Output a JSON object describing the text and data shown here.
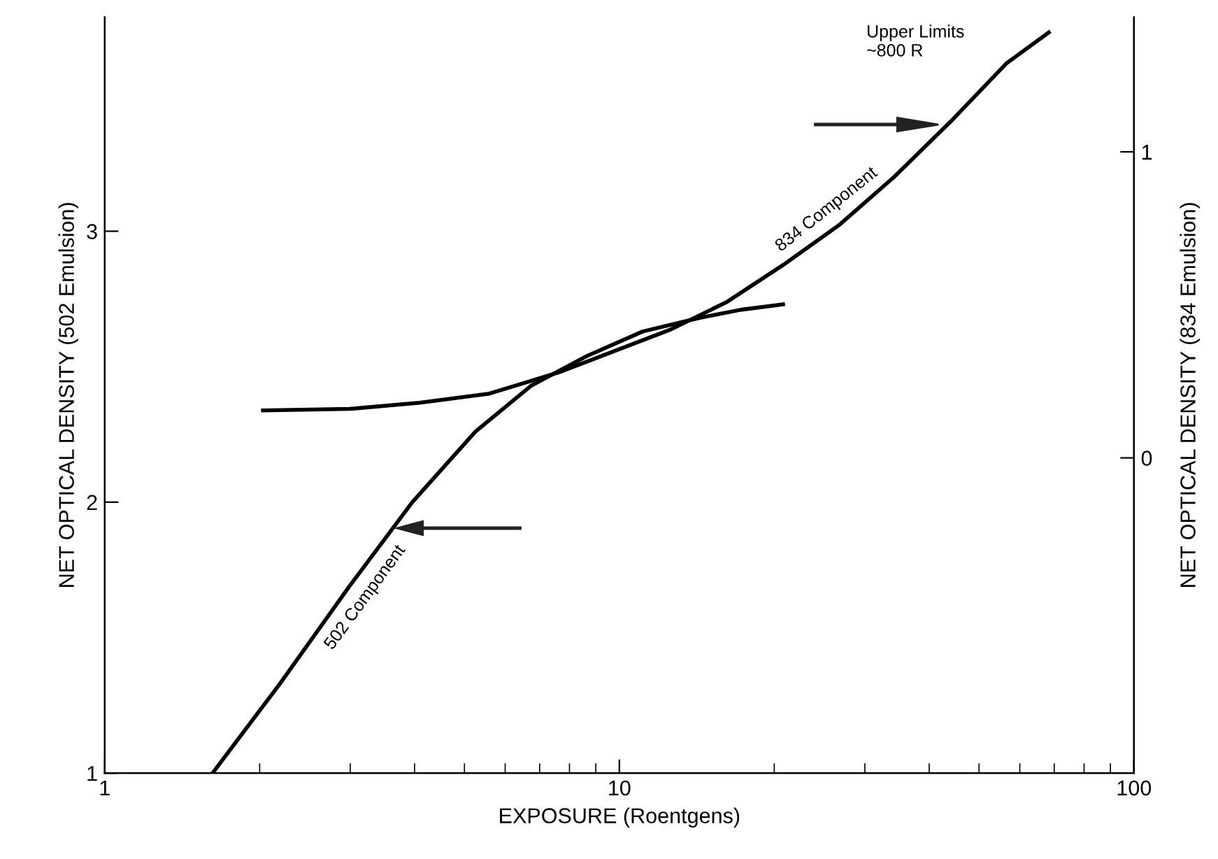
{
  "chart_data": {
    "type": "line",
    "xlabel": "EXPOSURE (Roentgens)",
    "ylabel": "NET OPTICAL DENSITY (502 Emulsion)",
    "y2label": "NET OPTICAL DENSITY (834 Emulsion)",
    "log": "x",
    "xlim": [
      1,
      100
    ],
    "xticks": [
      1,
      10,
      100
    ],
    "ylim": [
      1,
      3.79
    ],
    "yticks": [
      1,
      2,
      3
    ],
    "y2lim": [
      -1.03,
      1.44
    ],
    "y2ticks": [
      0,
      1
    ],
    "grid": false,
    "legend": false,
    "series": [
      {
        "name": "502 Component",
        "color": "#000000",
        "x": [
          1.62,
          2.19,
          2.99,
          3.96,
          5.25,
          6.74,
          8.66,
          11.1,
          14.3,
          17.2,
          20.8
        ],
        "values": [
          1.0,
          1.33,
          1.69,
          2.0,
          2.26,
          2.43,
          2.54,
          2.63,
          2.68,
          2.71,
          2.73
        ]
      },
      {
        "name": "834 Component",
        "color": "#000000",
        "axis": "y2",
        "x": [
          2.03,
          2.99,
          4.09,
          5.59,
          7.64,
          9.82,
          12.6,
          16.2,
          20.8,
          26.7,
          34.3,
          44.1,
          56.6,
          68.3
        ],
        "values": [
          0.155,
          0.16,
          0.18,
          0.21,
          0.28,
          0.35,
          0.42,
          0.51,
          0.63,
          0.76,
          0.92,
          1.1,
          1.29,
          1.39
        ]
      }
    ],
    "annotations": [
      "Upper Limits\n~800 R"
    ]
  }
}
